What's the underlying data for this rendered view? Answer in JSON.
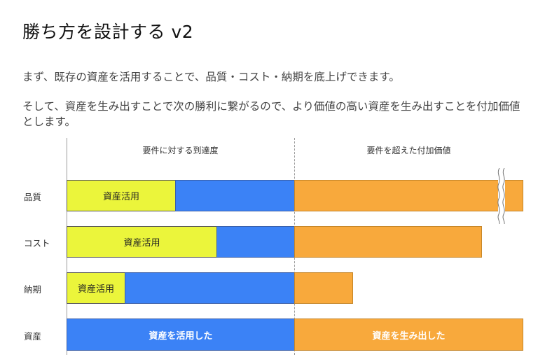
{
  "title": "勝ち方を設計する v2",
  "paragraphs": [
    "まず、既存の資産を活用することで、品質・コスト・納期を底上げできます。",
    "そして、資産を生み出すことで次の勝利に繋がるので、より価値の高い資産を生み出すことを付加価値とします。"
  ],
  "columns": {
    "left": "要件に対する到達度",
    "right": "要件を超えた付加価値"
  },
  "rows": [
    {
      "label": "品質",
      "asset_label": "資産活用"
    },
    {
      "label": "コスト",
      "asset_label": "資産活用"
    },
    {
      "label": "納期",
      "asset_label": "資産活用"
    },
    {
      "label": "資産",
      "left_label": "資産を活用した",
      "right_label": "資産を生み出した"
    }
  ],
  "colors": {
    "asset": "#ebf53b",
    "achievement": "#3b82f6",
    "added_value": "#f8a93c"
  }
}
